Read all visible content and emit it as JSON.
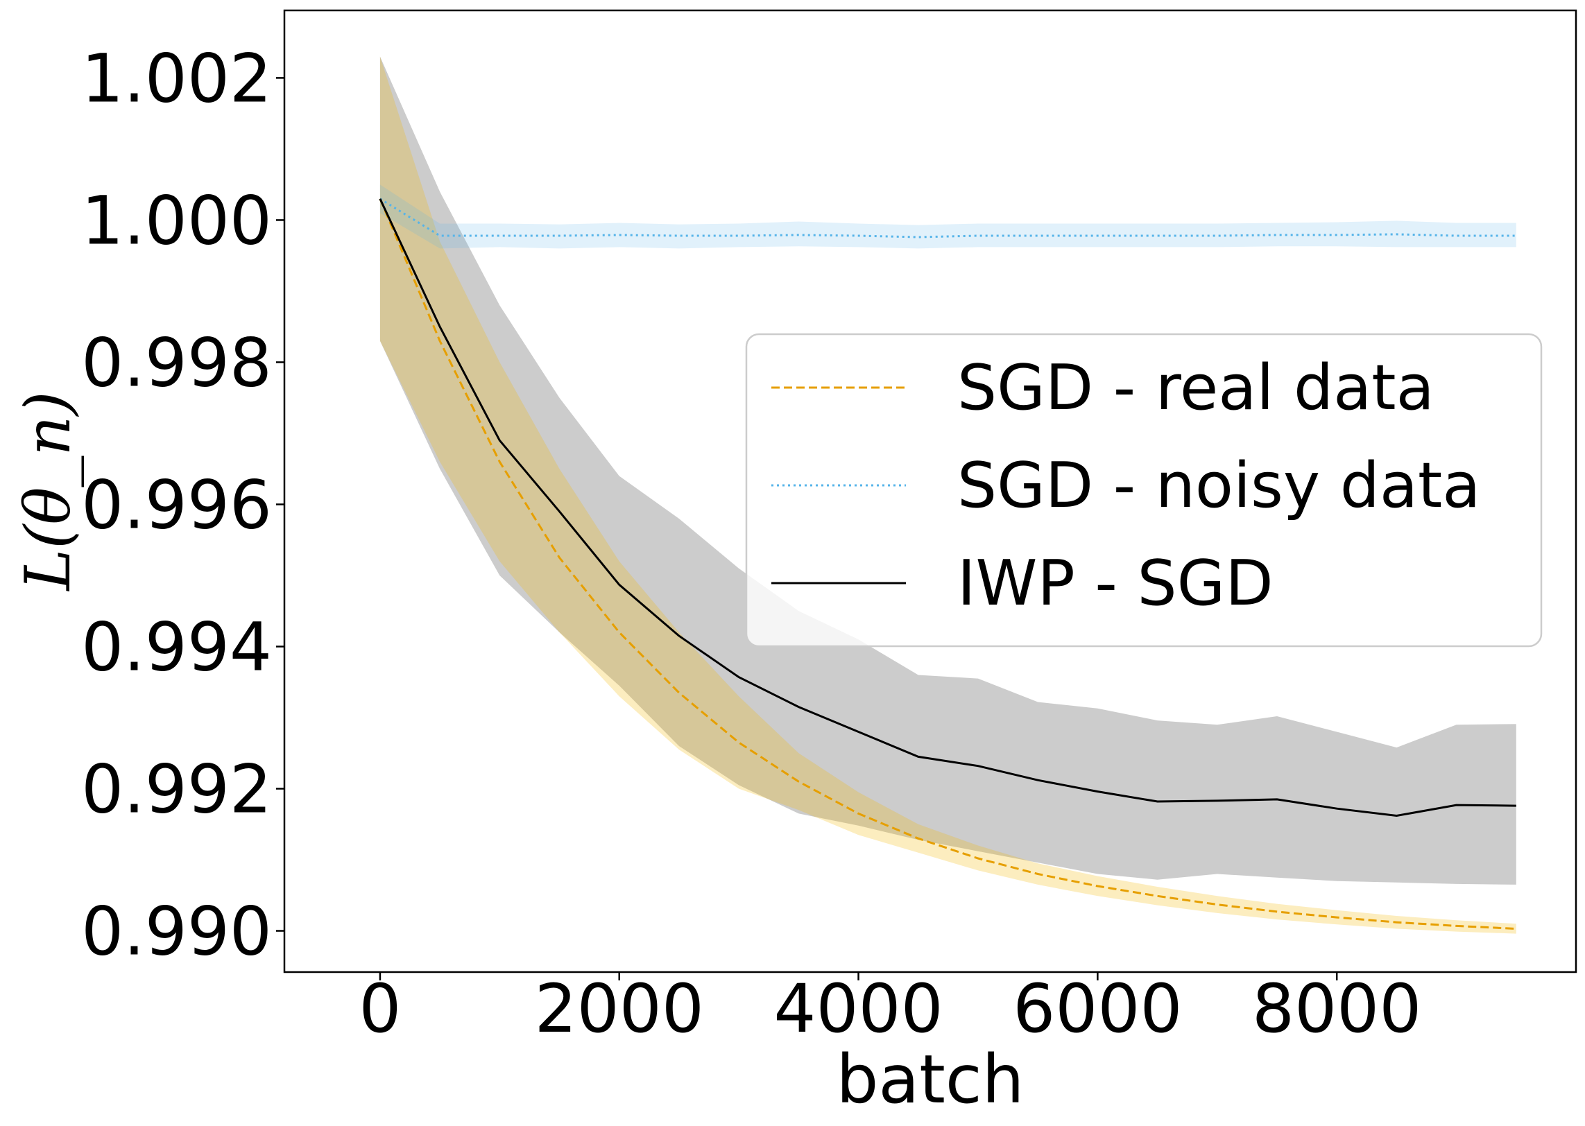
{
  "chart_data": {
    "type": "line",
    "title": "",
    "xlabel": "batch",
    "ylabel": "L(θ_n)",
    "xlim": [
      -800,
      10000
    ],
    "ylim": [
      0.98942,
      1.00295
    ],
    "xticks": [
      0,
      2000,
      4000,
      6000,
      8000
    ],
    "xtick_labels": [
      "0",
      "2000",
      "4000",
      "6000",
      "8000"
    ],
    "yticks": [
      0.99,
      0.992,
      0.994,
      0.996,
      0.998,
      1.0,
      1.002
    ],
    "ytick_labels": [
      "0.990",
      "0.992",
      "0.994",
      "0.996",
      "0.998",
      "1.000",
      "1.002"
    ],
    "grid": false,
    "legend_position": "center-right",
    "x": [
      0,
      500,
      1000,
      1500,
      2000,
      2500,
      3000,
      3500,
      4000,
      4500,
      5000,
      5500,
      6000,
      6500,
      7000,
      7500,
      8000,
      8500,
      9000,
      9500
    ],
    "series": [
      {
        "name": "SGD - real data",
        "color": "#e69f00",
        "style": "dashed",
        "values": [
          1.0003,
          0.9983,
          0.9966,
          0.99525,
          0.9942,
          0.99335,
          0.99265,
          0.9921,
          0.99165,
          0.9913,
          0.99102,
          0.9908,
          0.99063,
          0.99049,
          0.99037,
          0.99027,
          0.99019,
          0.99012,
          0.99007,
          0.99003
        ],
        "lower": [
          0.9983,
          0.9966,
          0.9952,
          0.9942,
          0.9933,
          0.99255,
          0.992,
          0.9917,
          0.99135,
          0.9911,
          0.99085,
          0.99065,
          0.99049,
          0.99036,
          0.99025,
          0.99016,
          0.99009,
          0.99003,
          0.98999,
          0.98996
        ],
        "upper": [
          1.0023,
          0.9997,
          0.998,
          0.9965,
          0.9952,
          0.9942,
          0.9933,
          0.9925,
          0.99195,
          0.9915,
          0.9912,
          0.99095,
          0.99077,
          0.99062,
          0.99049,
          0.99038,
          0.99029,
          0.99021,
          0.99015,
          0.9901
        ]
      },
      {
        "name": "SGD - noisy data",
        "color": "#56b4e9",
        "style": "dotted",
        "values": [
          1.0003,
          0.99978,
          0.99978,
          0.99978,
          0.99979,
          0.99978,
          0.99978,
          0.99979,
          0.99978,
          0.99976,
          0.99978,
          0.99978,
          0.99978,
          0.99978,
          0.99978,
          0.99979,
          0.99979,
          0.9998,
          0.99978,
          0.99978
        ],
        "lower": [
          1.0001,
          0.9996,
          0.99962,
          0.9996,
          0.99962,
          0.9996,
          0.99962,
          0.99963,
          0.99962,
          0.9996,
          0.99962,
          0.99962,
          0.99962,
          0.99962,
          0.99962,
          0.99963,
          0.99963,
          0.99962,
          0.99962,
          0.99962
        ],
        "upper": [
          1.0005,
          0.99995,
          0.99995,
          0.99994,
          0.99996,
          0.99994,
          0.99995,
          0.99998,
          0.99995,
          0.99993,
          0.99995,
          0.99995,
          0.99995,
          0.99995,
          0.99995,
          0.99996,
          0.99997,
          0.99999,
          0.99996,
          0.99996
        ]
      },
      {
        "name": "IWP - SGD",
        "color": "#000000",
        "style": "solid",
        "values": [
          1.0003,
          0.9985,
          0.9969,
          0.9959,
          0.99487,
          0.99415,
          0.99357,
          0.99315,
          0.9928,
          0.99245,
          0.99232,
          0.99212,
          0.99196,
          0.99182,
          0.99183,
          0.99185,
          0.99172,
          0.99162,
          0.99177,
          0.99176
        ],
        "lower": [
          0.9983,
          0.9965,
          0.995,
          0.9942,
          0.99345,
          0.9926,
          0.99205,
          0.99165,
          0.99148,
          0.99128,
          0.99112,
          0.99096,
          0.9908,
          0.99072,
          0.9908,
          0.99075,
          0.9907,
          0.99068,
          0.99066,
          0.99065
        ],
        "upper": [
          1.0023,
          1.0004,
          0.9988,
          0.9975,
          0.9964,
          0.9958,
          0.9951,
          0.9945,
          0.9941,
          0.9936,
          0.99355,
          0.99322,
          0.99313,
          0.99296,
          0.9929,
          0.99302,
          0.9928,
          0.99258,
          0.9929,
          0.99291
        ]
      }
    ]
  }
}
